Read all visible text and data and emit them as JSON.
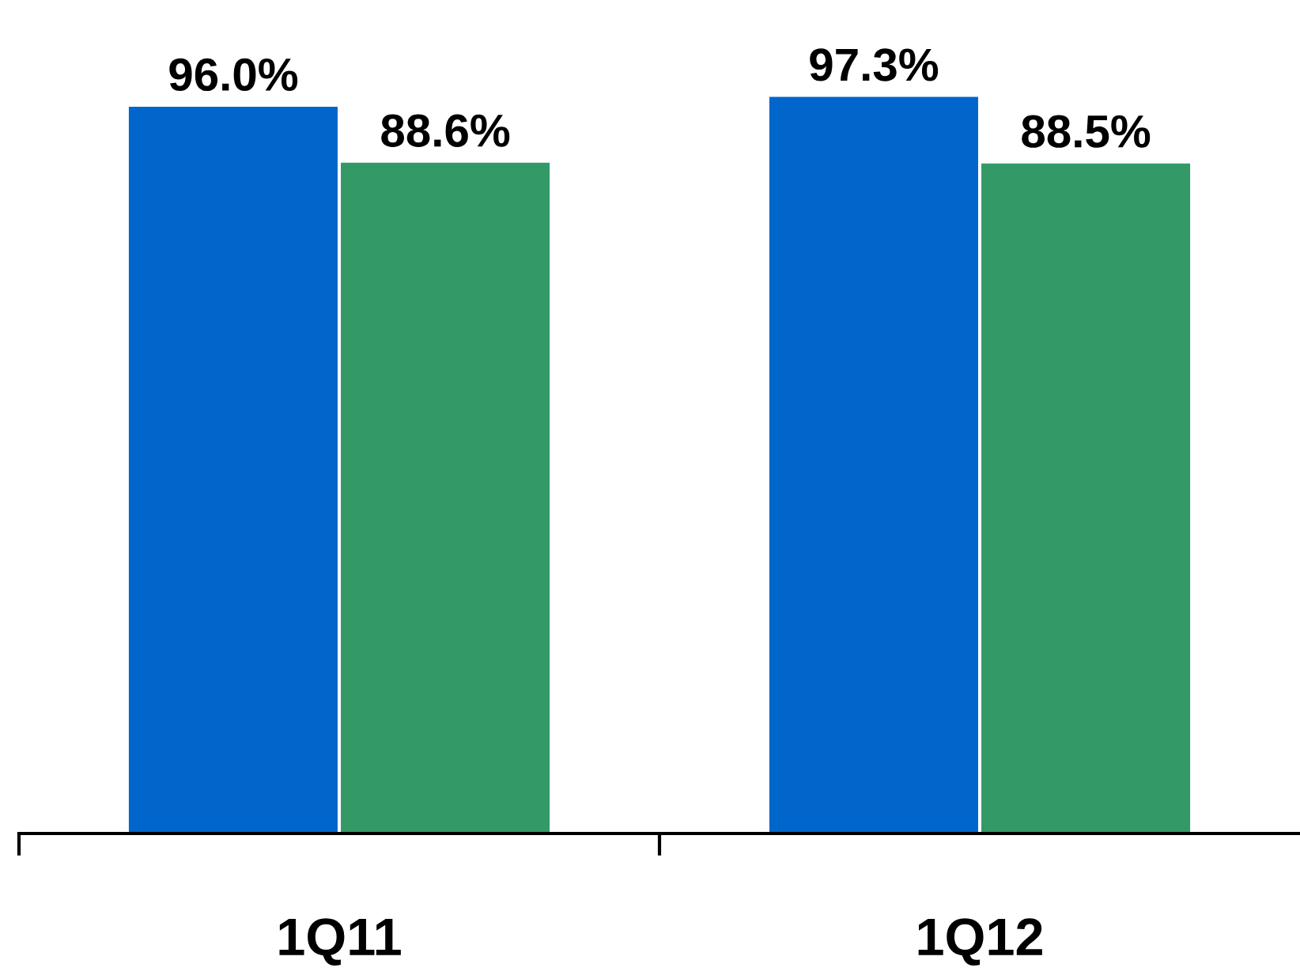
{
  "chart_data": {
    "type": "bar",
    "categories": [
      "1Q11",
      "1Q12"
    ],
    "series": [
      {
        "color": "#0066cc",
        "values": [
          96.0,
          97.3
        ],
        "value_labels": [
          "96.0%",
          "97.3%"
        ]
      },
      {
        "color": "#339966",
        "values": [
          88.6,
          88.5
        ],
        "value_labels": [
          "88.6%",
          "88.5%"
        ]
      }
    ],
    "grid": false,
    "legend": false
  }
}
